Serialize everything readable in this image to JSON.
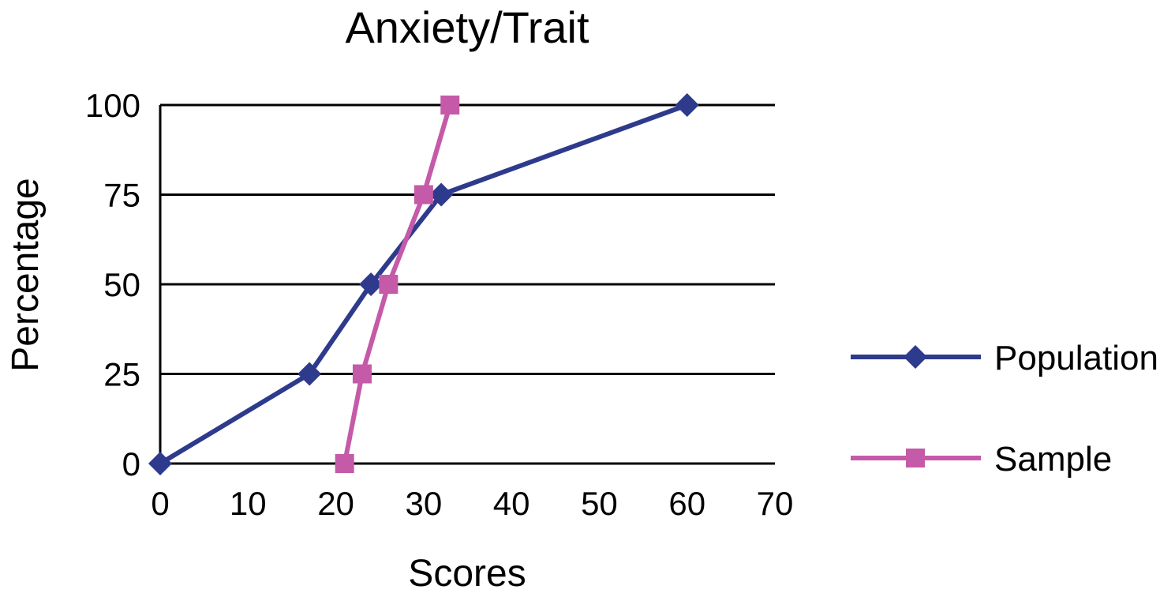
{
  "chart_data": {
    "type": "line",
    "title": "Anxiety/Trait",
    "xlabel": "Scores",
    "ylabel": "Percentage",
    "xlim": [
      0,
      70
    ],
    "ylim": [
      0,
      100
    ],
    "x_ticks": [
      0,
      10,
      20,
      30,
      40,
      50,
      60,
      70
    ],
    "y_ticks": [
      0,
      25,
      50,
      75,
      100
    ],
    "grid": "horizontal",
    "legend_position": "right",
    "series": [
      {
        "name": "Population",
        "color": "#2e3a8c",
        "marker": "diamond",
        "points": [
          {
            "x": 0,
            "y": 0
          },
          {
            "x": 17,
            "y": 25
          },
          {
            "x": 24,
            "y": 50
          },
          {
            "x": 32,
            "y": 75
          },
          {
            "x": 60,
            "y": 100
          }
        ]
      },
      {
        "name": "Sample",
        "color": "#c45aa8",
        "marker": "square",
        "points": [
          {
            "x": 21,
            "y": 0
          },
          {
            "x": 23,
            "y": 25
          },
          {
            "x": 26,
            "y": 50
          },
          {
            "x": 30,
            "y": 75
          },
          {
            "x": 33,
            "y": 100
          }
        ]
      }
    ]
  }
}
